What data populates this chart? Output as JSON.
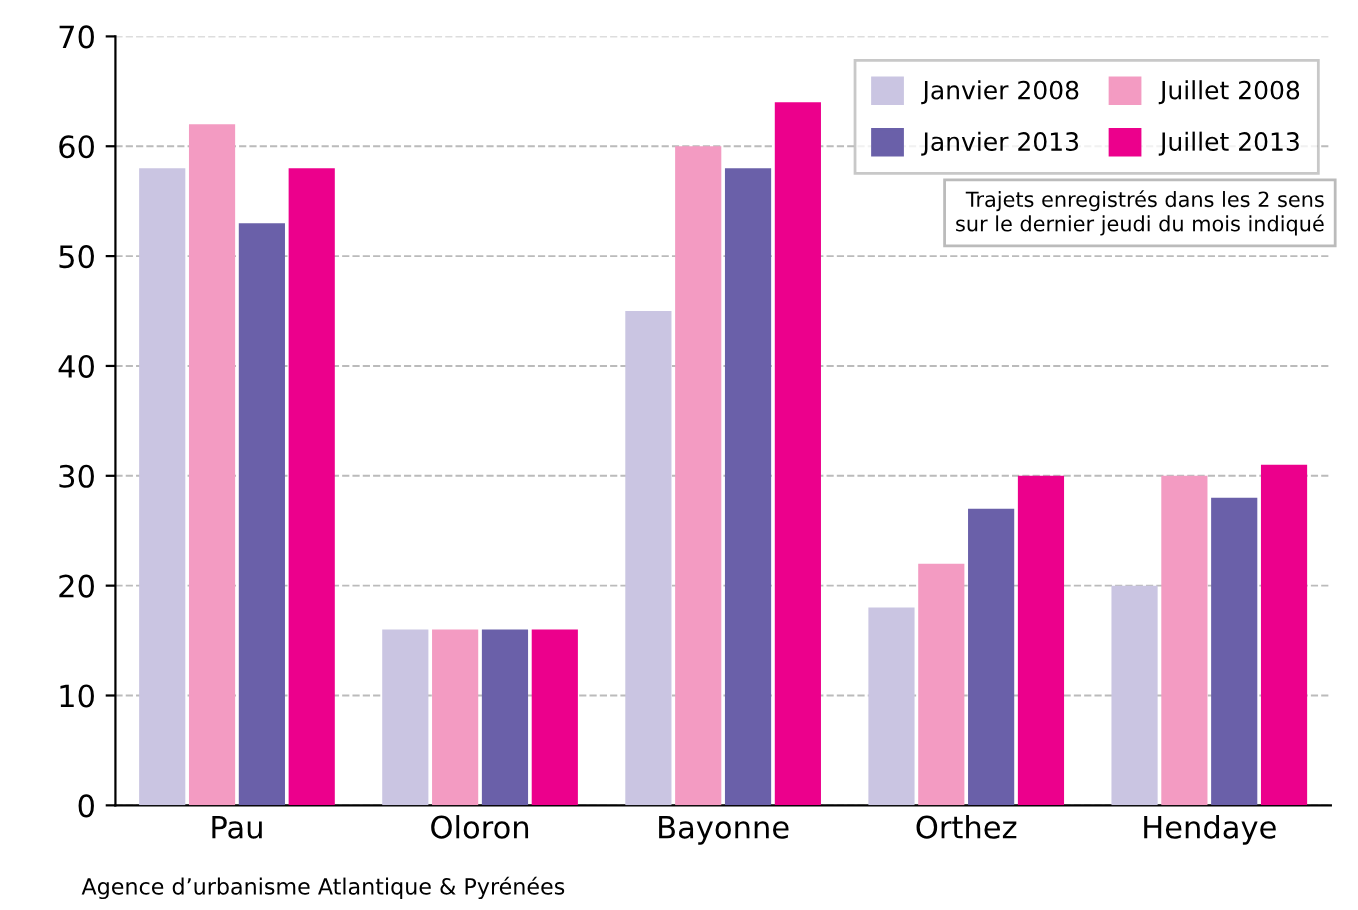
{
  "chart_data": {
    "type": "bar",
    "categories": [
      "Pau",
      "Oloron",
      "Bayonne",
      "Orthez",
      "Hendaye"
    ],
    "series": [
      {
        "name": "Janvier 2008",
        "color": "#cac5e2",
        "values": [
          58,
          16,
          45,
          18,
          20
        ]
      },
      {
        "name": "Juillet 2008",
        "color": "#f39bc2",
        "values": [
          62,
          16,
          60,
          22,
          30
        ]
      },
      {
        "name": "Janvier 2013",
        "color": "#6a60a9",
        "values": [
          53,
          16,
          58,
          27,
          28
        ]
      },
      {
        "name": "Juillet 2013",
        "color": "#ec008c",
        "values": [
          58,
          16,
          64,
          30,
          31
        ]
      }
    ],
    "ylim": [
      0,
      70
    ],
    "yticks": [
      0,
      10,
      20,
      30,
      40,
      50,
      60,
      70
    ],
    "grid": "y",
    "legend": "top right",
    "annotations": [
      "Trajets enregistrés dans les 2 sens\nsur le dernier jeudi du mois indiqué",
      "Agence d’urbanisme Atlantique & Pyrénées"
    ]
  }
}
